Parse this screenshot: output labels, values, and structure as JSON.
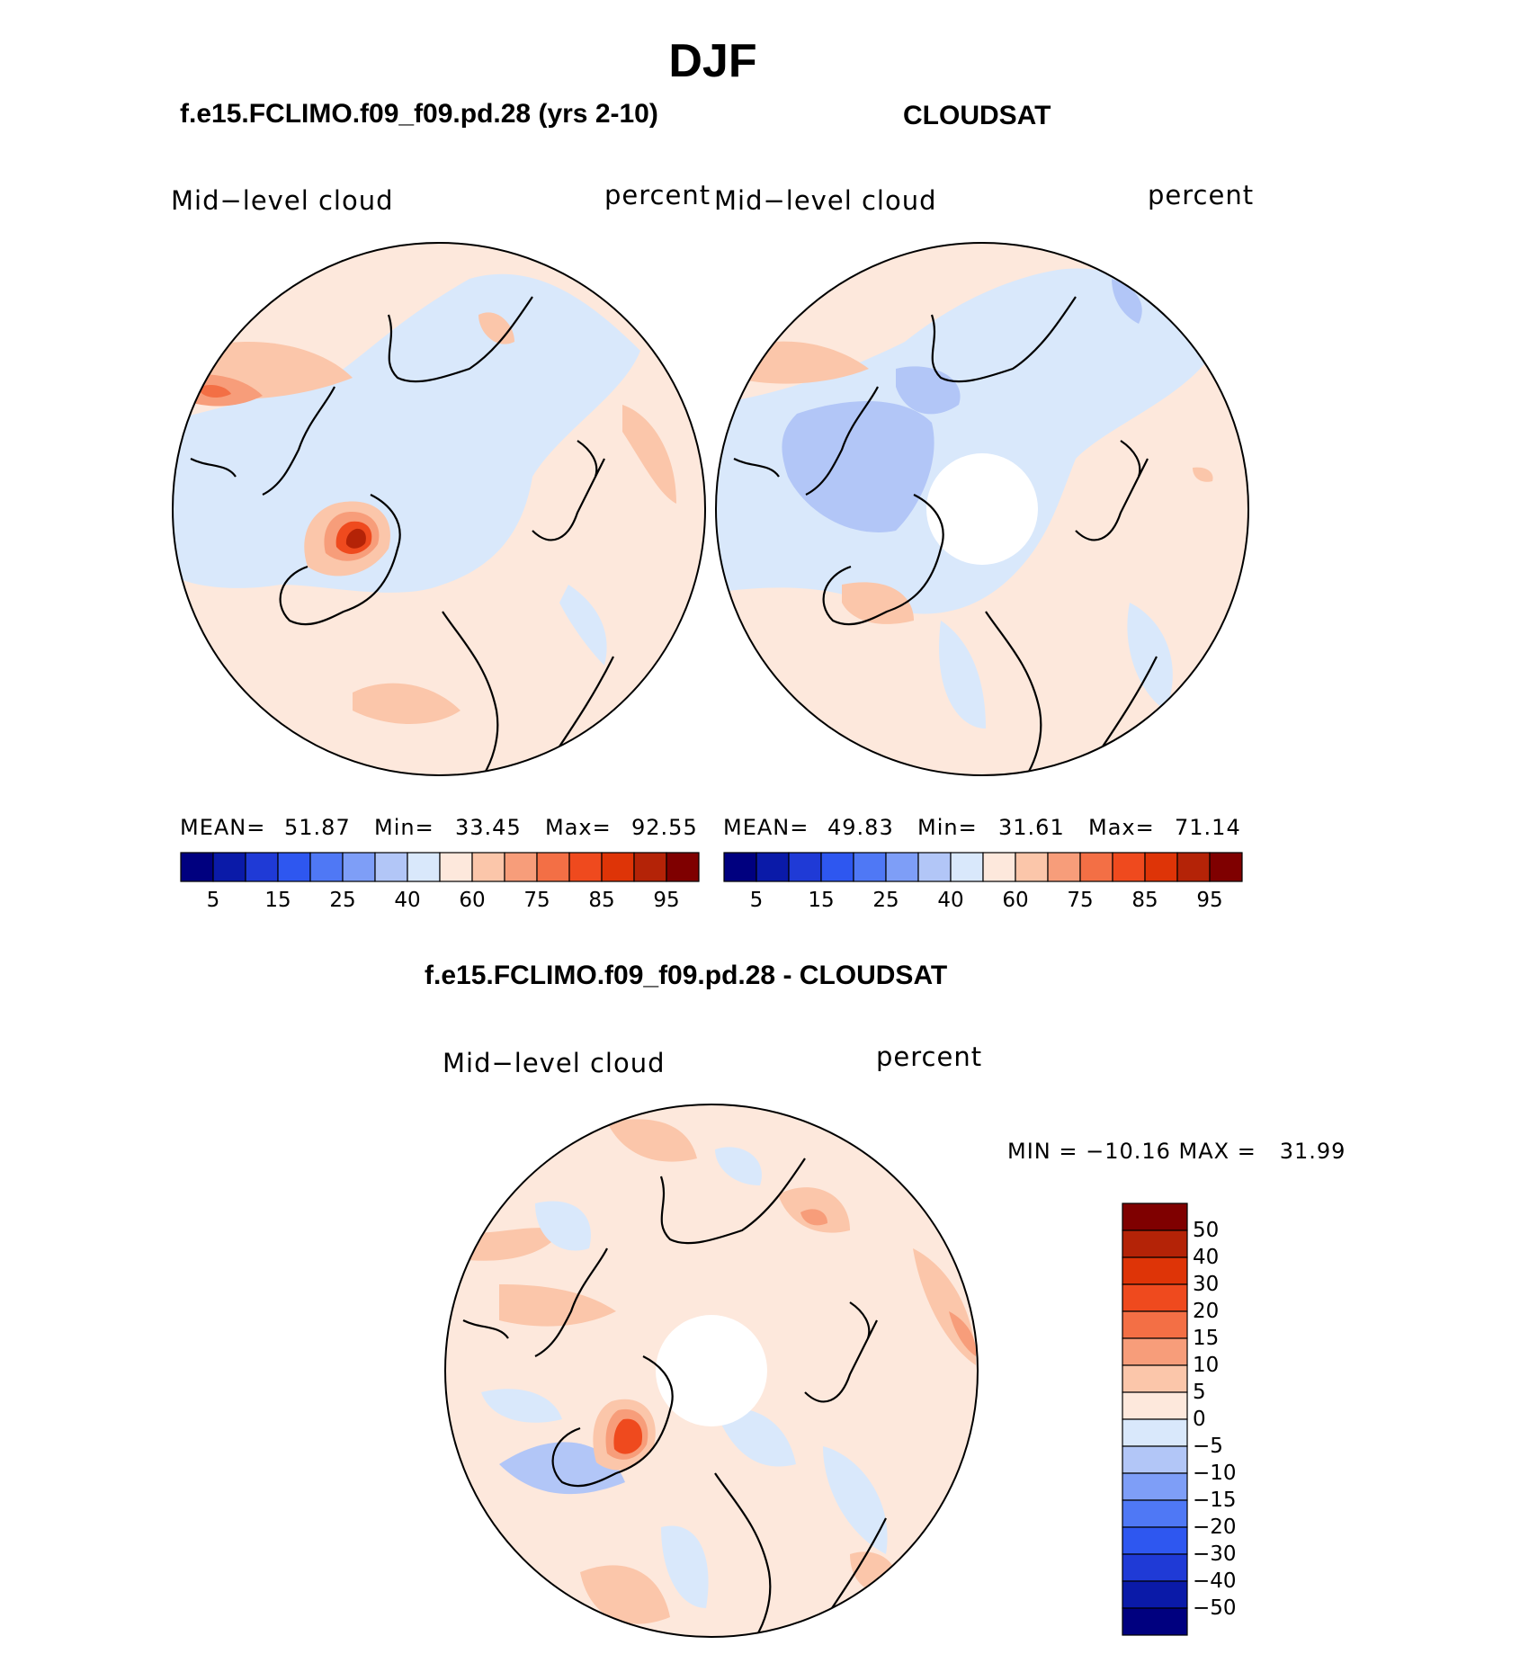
{
  "chart_data": [
    {
      "type": "heatmap",
      "title": "DJF",
      "panel_title": "f.e15.FCLIMO.f09_f09.pd.28 (yrs 2-10)",
      "left_label": "Mid−level cloud",
      "right_label": "percent",
      "stats": {
        "mean_label": "MEAN=",
        "mean": "51.87",
        "min_label": "Min=",
        "min": "33.45",
        "max_label": "Max=",
        "max": "92.55"
      },
      "colorbar": {
        "orientation": "horizontal",
        "levels": [
          5,
          10,
          15,
          20,
          25,
          30,
          40,
          50,
          60,
          70,
          75,
          80,
          85,
          90,
          95
        ],
        "tick_labels": [
          "5",
          "15",
          "25",
          "40",
          "60",
          "75",
          "85",
          "95"
        ]
      }
    },
    {
      "type": "heatmap",
      "panel_title": "CLOUDSAT",
      "left_label": "Mid−level cloud",
      "right_label": "percent",
      "stats": {
        "mean_label": "MEAN=",
        "mean": "49.83",
        "min_label": "Min=",
        "min": "31.61",
        "max_label": "Max=",
        "max": "71.14"
      },
      "colorbar": {
        "orientation": "horizontal",
        "levels": [
          5,
          10,
          15,
          20,
          25,
          30,
          40,
          50,
          60,
          70,
          75,
          80,
          85,
          90,
          95
        ],
        "tick_labels": [
          "5",
          "15",
          "25",
          "40",
          "60",
          "75",
          "85",
          "95"
        ]
      }
    },
    {
      "type": "heatmap",
      "panel_title": "f.e15.FCLIMO.f09_f09.pd.28 - CLOUDSAT",
      "left_label": "Mid−level cloud",
      "right_label": "percent",
      "minmax": "MIN = −10.16 MAX =   31.99",
      "colorbar": {
        "orientation": "vertical",
        "levels": [
          50,
          40,
          30,
          20,
          15,
          10,
          5,
          0,
          -5,
          -10,
          -15,
          -20,
          -30,
          -40,
          -50
        ],
        "tick_labels": [
          "50",
          "40",
          "30",
          "20",
          "15",
          "10",
          "5",
          "0",
          "−5",
          "−10",
          "−15",
          "−20",
          "−30",
          "−40",
          "−50"
        ]
      }
    }
  ],
  "colors": {
    "abs_scale": [
      "#00007f",
      "#0a1aa8",
      "#1f3ad6",
      "#2e57f0",
      "#4f78f5",
      "#7e9ef7",
      "#b2c6f7",
      "#d9e8fb",
      "#fde8dc",
      "#fbc6aa",
      "#f79d7a",
      "#f36f45",
      "#ef4a1e",
      "#de3407",
      "#b42307",
      "#7f0000"
    ],
    "diff_scale": [
      "#7f0000",
      "#b42307",
      "#de3407",
      "#ef4a1e",
      "#f36f45",
      "#f79d7a",
      "#fbc6aa",
      "#fde8dc",
      "#d9e8fb",
      "#b2c6f7",
      "#7e9ef7",
      "#4f78f5",
      "#2e57f0",
      "#1f3ad6",
      "#0a1aa8",
      "#00007f"
    ]
  }
}
